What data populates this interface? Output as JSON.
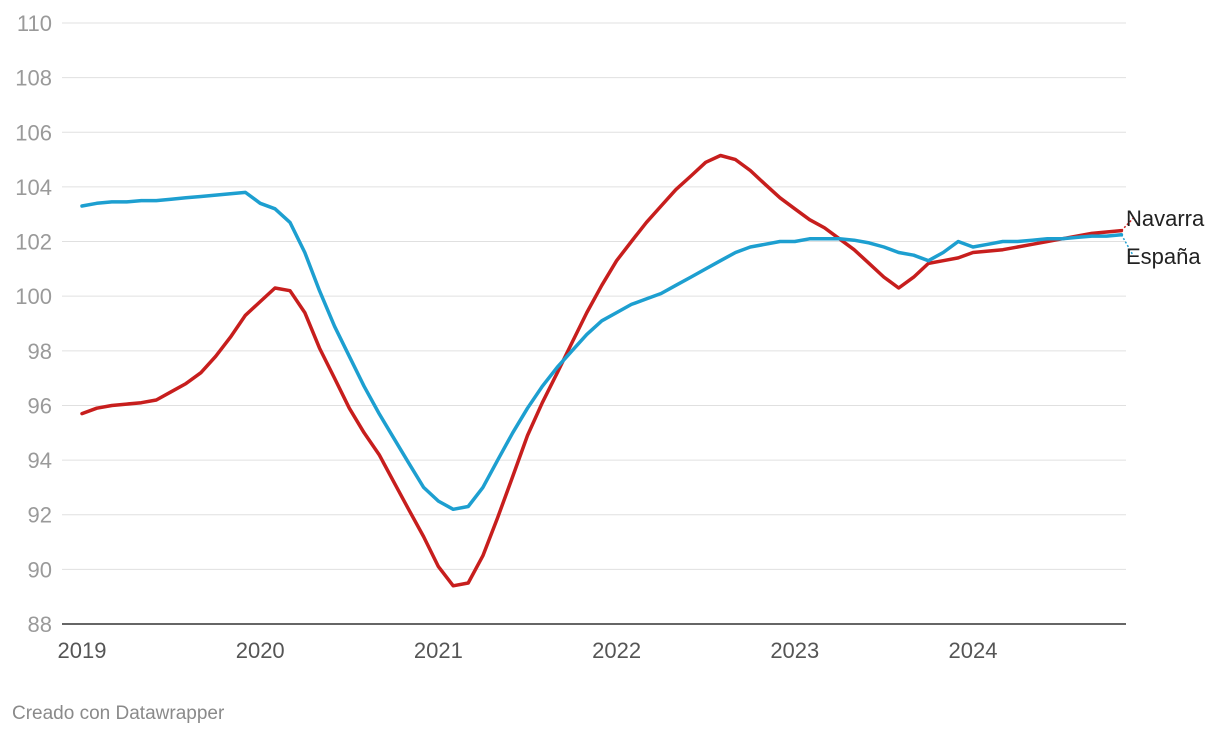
{
  "chart_data": {
    "type": "line",
    "title": "",
    "xlabel": "",
    "ylabel": "",
    "ylim": [
      88,
      110
    ],
    "yticks": [
      88,
      90,
      92,
      94,
      96,
      98,
      100,
      102,
      104,
      106,
      108,
      110
    ],
    "xlim": [
      2019.0,
      2024.833
    ],
    "xticks": [
      "2019",
      "2020",
      "2021",
      "2022",
      "2023",
      "2024"
    ],
    "grid": true,
    "legend": "direct labels at right end",
    "series": [
      {
        "name": "Navarra",
        "color": "#c71e1d",
        "x": [
          2019.0,
          2019.083,
          2019.167,
          2019.25,
          2019.333,
          2019.417,
          2019.5,
          2019.583,
          2019.667,
          2019.75,
          2019.833,
          2019.917,
          2020.0,
          2020.083,
          2020.167,
          2020.25,
          2020.333,
          2020.417,
          2020.5,
          2020.583,
          2020.667,
          2020.75,
          2020.833,
          2020.917,
          2021.0,
          2021.083,
          2021.167,
          2021.25,
          2021.333,
          2021.417,
          2021.5,
          2021.583,
          2021.667,
          2021.75,
          2021.833,
          2021.917,
          2022.0,
          2022.083,
          2022.167,
          2022.25,
          2022.333,
          2022.417,
          2022.5,
          2022.583,
          2022.667,
          2022.75,
          2022.833,
          2022.917,
          2023.0,
          2023.083,
          2023.167,
          2023.25,
          2023.333,
          2023.417,
          2023.5,
          2023.583,
          2023.667,
          2023.75,
          2023.833,
          2023.917,
          2024.0,
          2024.083,
          2024.167,
          2024.25,
          2024.333,
          2024.417,
          2024.5,
          2024.583,
          2024.667,
          2024.75,
          2024.833
        ],
        "values": [
          95.7,
          95.9,
          96.0,
          96.05,
          96.1,
          96.2,
          96.5,
          96.8,
          97.2,
          97.8,
          98.5,
          99.3,
          99.8,
          100.3,
          100.2,
          99.4,
          98.1,
          97.0,
          95.9,
          95.0,
          94.2,
          93.2,
          92.2,
          91.2,
          90.1,
          89.4,
          89.5,
          90.5,
          91.9,
          93.4,
          94.9,
          96.1,
          97.2,
          98.3,
          99.4,
          100.4,
          101.3,
          102.0,
          102.7,
          103.3,
          103.9,
          104.4,
          104.9,
          105.15,
          105.0,
          104.6,
          104.1,
          103.6,
          103.2,
          102.8,
          102.5,
          102.1,
          101.7,
          101.2,
          100.7,
          100.3,
          100.7,
          101.2,
          101.3,
          101.4,
          101.6,
          101.65,
          101.7,
          101.8,
          101.9,
          102.0,
          102.1,
          102.2,
          102.3,
          102.35,
          102.4
        ]
      },
      {
        "name": "España",
        "color": "#1d9fd0",
        "x": [
          2019.0,
          2019.083,
          2019.167,
          2019.25,
          2019.333,
          2019.417,
          2019.5,
          2019.583,
          2019.667,
          2019.75,
          2019.833,
          2019.917,
          2020.0,
          2020.083,
          2020.167,
          2020.25,
          2020.333,
          2020.417,
          2020.5,
          2020.583,
          2020.667,
          2020.75,
          2020.833,
          2020.917,
          2021.0,
          2021.083,
          2021.167,
          2021.25,
          2021.333,
          2021.417,
          2021.5,
          2021.583,
          2021.667,
          2021.75,
          2021.833,
          2021.917,
          2022.0,
          2022.083,
          2022.167,
          2022.25,
          2022.333,
          2022.417,
          2022.5,
          2022.583,
          2022.667,
          2022.75,
          2022.833,
          2022.917,
          2023.0,
          2023.083,
          2023.167,
          2023.25,
          2023.333,
          2023.417,
          2023.5,
          2023.583,
          2023.667,
          2023.75,
          2023.833,
          2023.917,
          2024.0,
          2024.083,
          2024.167,
          2024.25,
          2024.333,
          2024.417,
          2024.5,
          2024.583,
          2024.667,
          2024.75,
          2024.833
        ],
        "values": [
          103.3,
          103.4,
          103.45,
          103.45,
          103.5,
          103.5,
          103.55,
          103.6,
          103.65,
          103.7,
          103.75,
          103.8,
          103.4,
          103.2,
          102.7,
          101.6,
          100.2,
          98.9,
          97.8,
          96.7,
          95.7,
          94.8,
          93.9,
          93.0,
          92.5,
          92.2,
          92.3,
          93.0,
          94.0,
          95.0,
          95.9,
          96.7,
          97.4,
          98.0,
          98.6,
          99.1,
          99.4,
          99.7,
          99.9,
          100.1,
          100.4,
          100.7,
          101.0,
          101.3,
          101.6,
          101.8,
          101.9,
          102.0,
          102.0,
          102.1,
          102.1,
          102.1,
          102.05,
          101.95,
          101.8,
          101.6,
          101.5,
          101.3,
          101.6,
          102.0,
          101.8,
          101.9,
          102.0,
          102.0,
          102.05,
          102.1,
          102.1,
          102.15,
          102.2,
          102.2,
          102.25
        ]
      }
    ]
  },
  "footer": {
    "credit": "Creado con Datawrapper"
  }
}
